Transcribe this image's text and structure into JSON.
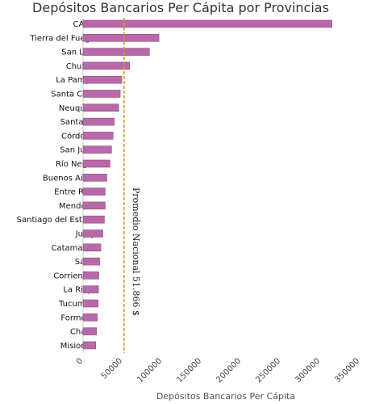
{
  "chart_data": {
    "type": "bar",
    "orientation": "horizontal",
    "title": "Depósitos Bancarios Per Cápita por Provincias",
    "xlabel": "Depósitos Bancarios Per Cápita",
    "ylabel": "",
    "xlim": [
      0,
      350000
    ],
    "xticks": [
      "0",
      "50000",
      "100000",
      "150000",
      "200000",
      "250000",
      "300000",
      "350000"
    ],
    "categories": [
      "CABA",
      "Tierra del Fuego",
      "San Luis",
      "Chubut",
      "La Pampa",
      "Santa Cruz",
      "Neuquén",
      "Santa Fe",
      "Córdoba",
      "San Juan",
      "Río Negro",
      "Buenos Aires",
      "Entre Rios",
      "Mendoza",
      "Santiago del Estero",
      "Jujuy",
      "Catamarca",
      "Salta",
      "Corrientes",
      "La Rioja",
      "Tucumán",
      "Formosa",
      "Chaco",
      "Misiones"
    ],
    "values": [
      315000,
      96000,
      84000,
      59000,
      49000,
      47000,
      45000,
      39500,
      38000,
      36000,
      34000,
      30000,
      28000,
      28000,
      27000,
      25000,
      22500,
      21000,
      20000,
      19500,
      19000,
      18000,
      17000,
      16000
    ],
    "reference_line": {
      "value": 51866,
      "label": "Promedio Nacional 51.866 $",
      "color": "#d49a2a"
    },
    "bar_color": "#b86aa8",
    "grid": false
  }
}
